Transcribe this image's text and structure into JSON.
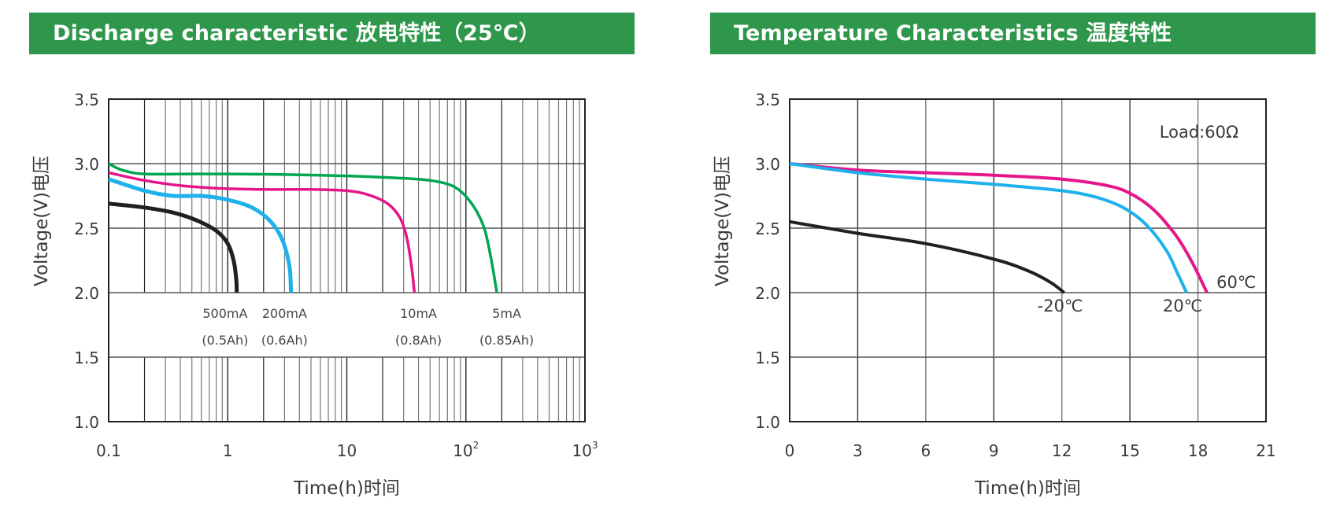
{
  "colors": {
    "header_bg": "#2f974b",
    "green": "#00a651",
    "magenta": "#e5168a",
    "cyan": "#1eb1ec",
    "black": "#231f20"
  },
  "chart_data": [
    {
      "type": "line",
      "title": "Discharge characteristic 放电特性（25℃）",
      "xlabel": "Time(h)时间",
      "ylabel": "Voltage(V)电压",
      "xscale": "log",
      "xlim": [
        0.1,
        1000
      ],
      "ylim": [
        1.0,
        3.5
      ],
      "x_ticks": [
        {
          "value": 0.1,
          "label": "0.1",
          "sup": ""
        },
        {
          "value": 1,
          "label": "1",
          "sup": ""
        },
        {
          "value": 10,
          "label": "10",
          "sup": ""
        },
        {
          "value": 100,
          "label": "10",
          "sup": "2"
        },
        {
          "value": 1000,
          "label": "10",
          "sup": "3"
        }
      ],
      "y_ticks": [
        {
          "value": 1.0,
          "label": "1.0"
        },
        {
          "value": 1.5,
          "label": "1.5"
        },
        {
          "value": 2.0,
          "label": "2.0"
        },
        {
          "value": 2.5,
          "label": "2.5"
        },
        {
          "value": 3.0,
          "label": "3.0"
        },
        {
          "value": 3.5,
          "label": "3.5"
        }
      ],
      "grid": true,
      "annotations": [
        {
          "current": "500mA",
          "capacity": "(0.5Ah)",
          "x": 0.95
        },
        {
          "current": "200mA",
          "capacity": "(0.6Ah)",
          "x": 3.0
        },
        {
          "current": "10mA",
          "capacity": "(0.8Ah)",
          "x": 40
        },
        {
          "current": "5mA",
          "capacity": "(0.85Ah)",
          "x": 220
        }
      ],
      "series": [
        {
          "name": "5mA",
          "color_key": "green",
          "x": [
            0.1,
            0.13,
            0.2,
            0.5,
            1,
            3,
            10,
            25,
            50,
            80,
            110,
            140,
            160,
            182
          ],
          "y": [
            3.0,
            2.95,
            2.92,
            2.92,
            2.92,
            2.915,
            2.905,
            2.89,
            2.87,
            2.82,
            2.7,
            2.52,
            2.3,
            2.0
          ]
        },
        {
          "name": "10mA",
          "color_key": "magenta",
          "x": [
            0.1,
            0.2,
            0.4,
            0.8,
            2,
            5,
            10,
            15,
            22,
            28,
            32,
            35,
            37
          ],
          "y": [
            2.93,
            2.87,
            2.83,
            2.81,
            2.8,
            2.8,
            2.79,
            2.76,
            2.69,
            2.58,
            2.42,
            2.2,
            2.0
          ]
        },
        {
          "name": "200mA",
          "color_key": "cyan",
          "x": [
            0.1,
            0.2,
            0.35,
            0.6,
            1.0,
            1.6,
            2.3,
            2.9,
            3.3,
            3.4
          ],
          "y": [
            2.88,
            2.79,
            2.75,
            2.75,
            2.72,
            2.66,
            2.55,
            2.4,
            2.2,
            2.0
          ]
        },
        {
          "name": "500mA",
          "color_key": "black",
          "x": [
            0.1,
            0.2,
            0.35,
            0.55,
            0.8,
            1.0,
            1.12,
            1.18,
            1.19
          ],
          "y": [
            2.69,
            2.66,
            2.62,
            2.56,
            2.48,
            2.38,
            2.25,
            2.1,
            2.0
          ]
        }
      ]
    },
    {
      "type": "line",
      "title": "Temperature Characteristics 温度特性",
      "xlabel": "Time(h)时间",
      "ylabel": "Voltage(V)电压",
      "xscale": "linear",
      "xlim": [
        0,
        21
      ],
      "ylim": [
        1.0,
        3.5
      ],
      "x_ticks": [
        {
          "value": 0,
          "label": "0"
        },
        {
          "value": 3,
          "label": "3"
        },
        {
          "value": 6,
          "label": "6"
        },
        {
          "value": 9,
          "label": "9"
        },
        {
          "value": 12,
          "label": "12"
        },
        {
          "value": 15,
          "label": "15"
        },
        {
          "value": 18,
          "label": "18"
        },
        {
          "value": 21,
          "label": "21"
        }
      ],
      "y_ticks": [
        {
          "value": 1.0,
          "label": "1.0"
        },
        {
          "value": 1.5,
          "label": "1.5"
        },
        {
          "value": 2.0,
          "label": "2.0"
        },
        {
          "value": 2.5,
          "label": "2.5"
        },
        {
          "value": 3.0,
          "label": "3.0"
        },
        {
          "value": 3.5,
          "label": "3.5"
        }
      ],
      "grid": true,
      "load_label": "Load:60Ω",
      "series": [
        {
          "name": "60℃",
          "color_key": "magenta",
          "x": [
            0,
            3,
            6,
            9,
            12,
            14,
            15,
            16,
            17,
            17.7,
            18.4
          ],
          "y": [
            3.0,
            2.95,
            2.93,
            2.91,
            2.88,
            2.83,
            2.77,
            2.65,
            2.45,
            2.25,
            2.0
          ]
        },
        {
          "name": "20℃",
          "color_key": "cyan",
          "x": [
            0,
            3,
            6,
            9,
            12,
            13.5,
            14.7,
            15.7,
            16.6,
            17.1,
            17.5
          ],
          "y": [
            3.0,
            2.93,
            2.88,
            2.84,
            2.79,
            2.74,
            2.66,
            2.53,
            2.33,
            2.15,
            2.0
          ]
        },
        {
          "name": "-20℃",
          "color_key": "black",
          "x": [
            0,
            3,
            6,
            9,
            10.5,
            11.5,
            12.1
          ],
          "y": [
            2.55,
            2.46,
            2.38,
            2.26,
            2.17,
            2.08,
            2.0
          ]
        }
      ],
      "series_labels": [
        {
          "text": "-20℃",
          "x": 12.1,
          "y": 2.0,
          "pos": "below"
        },
        {
          "text": "20℃",
          "x": 17.5,
          "y": 2.0,
          "pos": "below"
        },
        {
          "text": "60℃",
          "x": 18.4,
          "y": 2.0,
          "pos": "right"
        }
      ]
    }
  ]
}
